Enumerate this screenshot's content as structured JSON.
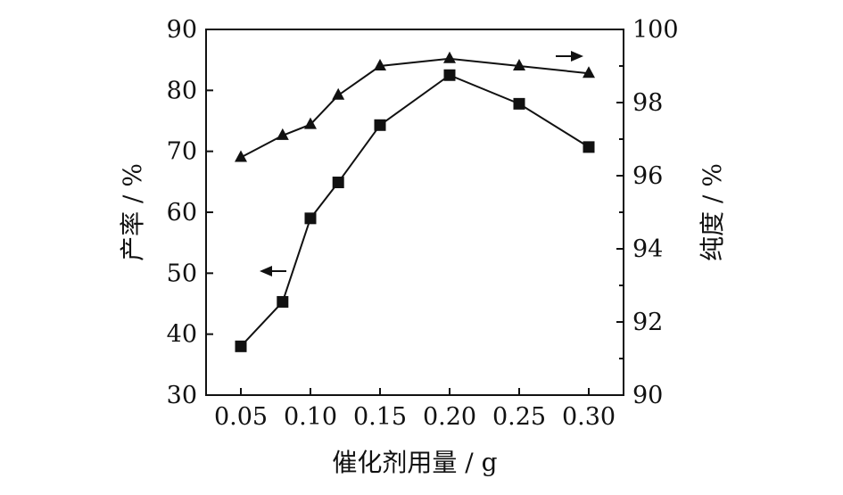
{
  "chart_data": {
    "type": "line",
    "x": [
      0.05,
      0.08,
      0.1,
      0.12,
      0.15,
      0.2,
      0.25,
      0.3
    ],
    "x_tick_labels": [
      "0.05",
      "0.10",
      "0.15",
      "0.20",
      "0.25",
      "0.30"
    ],
    "xlabel": "催化剂用量 / g",
    "ylabel_left": "产率 / %",
    "ylabel_right": "纯度 / %",
    "ylim_left": [
      30,
      90
    ],
    "ylim_right": [
      90,
      100
    ],
    "y_ticks_left": [
      "30",
      "40",
      "50",
      "60",
      "70",
      "80",
      "90"
    ],
    "y_ticks_right": [
      "90",
      "92",
      "94",
      "96",
      "98",
      "100"
    ],
    "grid": false,
    "series": [
      {
        "axis": "left",
        "marker": "square",
        "values": [
          38.0,
          45.3,
          59.0,
          64.9,
          74.3,
          82.5,
          77.8,
          70.7
        ]
      },
      {
        "axis": "right",
        "marker": "triangle",
        "values": [
          96.5,
          97.1,
          97.4,
          98.2,
          99.0,
          99.2,
          99.0,
          98.8
        ]
      }
    ],
    "annotations": [
      {
        "type": "arrow",
        "direction": "left",
        "points_to": "left-axis series"
      },
      {
        "type": "arrow",
        "direction": "right",
        "points_to": "right-axis series"
      }
    ]
  }
}
